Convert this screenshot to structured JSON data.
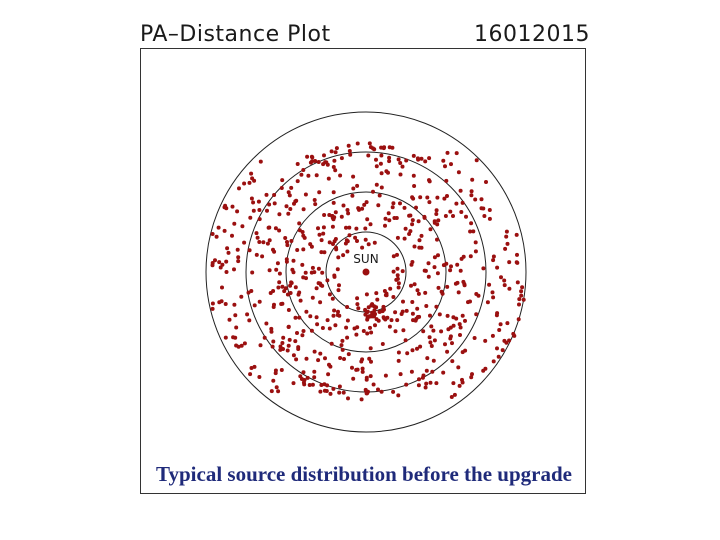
{
  "header": {
    "title": "PA–Distance Plot",
    "date": "16012015"
  },
  "caption": "Typical source distribution before the upgrade",
  "chart_data": {
    "type": "scatter",
    "title": "PA–Distance Plot",
    "subtitle": "16012015",
    "center_label": "SUN",
    "rings": [
      1,
      2,
      3,
      4
    ],
    "grid": false,
    "legend": "none",
    "xlim": [
      -4.5,
      4.5
    ],
    "ylim": [
      -4.5,
      4.5
    ],
    "point_color": "#9b1010",
    "ring_color": "#222222",
    "point_count_estimate": 700,
    "point_distribution": "points spread over all position angles, radial distance roughly 0.6 to 3.9 ring units, denser toward rings 2-3"
  }
}
